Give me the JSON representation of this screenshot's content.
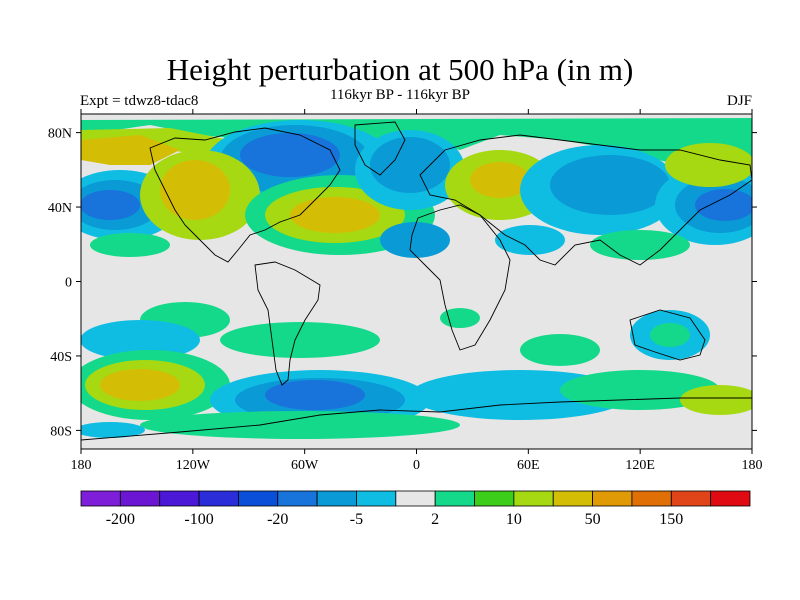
{
  "header": {
    "title": "Height perturbation at 500 hPa (in m)",
    "experiment": "Expt = tdwz8-tdac8",
    "period": "116kyr BP - 116kyr BP",
    "season": "DJF"
  },
  "axes": {
    "lat_labels": [
      "80N",
      "40N",
      "0",
      "40S",
      "80S"
    ],
    "lat_values": [
      80,
      40,
      0,
      -40,
      -80
    ],
    "lon_labels": [
      "180",
      "120W",
      "60W",
      "0",
      "60E",
      "120E",
      "180"
    ],
    "lon_values": [
      -180,
      -120,
      -60,
      0,
      60,
      120,
      180
    ]
  },
  "colorbar": {
    "colors": [
      "#7e1ed8",
      "#6a16d2",
      "#4b18d8",
      "#2b2dd8",
      "#0a4fd8",
      "#1873db",
      "#0a9ad6",
      "#10bde2",
      "#e6e6e6",
      "#15d98a",
      "#3ccc1a",
      "#a6d912",
      "#d4be05",
      "#e09a06",
      "#e07006",
      "#e0451a",
      "#e00a12"
    ],
    "labels": [
      "-200",
      "-100",
      "-20",
      "-5",
      "2",
      "10",
      "50",
      "150"
    ]
  },
  "field_colors": {
    "background": "#e6e6e6",
    "neg5": "#10bde2",
    "neg20": "#0a9ad6",
    "neg50": "#1873db",
    "neg100": "#0a4fd8",
    "pos2": "#15d98a",
    "pos10": "#3ccc1a",
    "pos50": "#a6d912",
    "pos100": "#d4be05"
  }
}
